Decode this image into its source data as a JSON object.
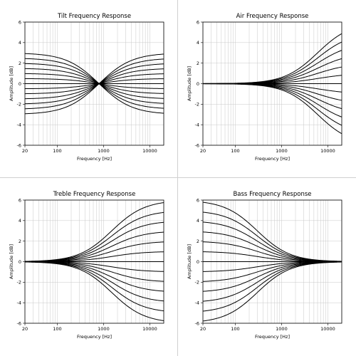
{
  "chart_data": [
    {
      "type": "line",
      "title": "Tilt Frequency Response",
      "xlabel": "Frequency [Hz]",
      "ylabel": "Amplitude [dB]",
      "xscale": "log",
      "xlim": [
        20,
        20000
      ],
      "ylim": [
        -6,
        6
      ],
      "xticks": [
        "20",
        "100",
        "1000",
        "10000"
      ],
      "yticks": [
        "-6",
        "-4",
        "-2",
        "0",
        "2",
        "4",
        "6"
      ],
      "grid": true,
      "kind": "tilt",
      "pivot_hz": 800,
      "gains_db": [
        -3,
        -2.5,
        -2,
        -1.5,
        -1,
        -0.5,
        0,
        0.5,
        1,
        1.5,
        2,
        2.5,
        3
      ]
    },
    {
      "type": "line",
      "title": "Air Frequency Response",
      "xlabel": "Frequency [Hz]",
      "ylabel": "Amplitude [dB]",
      "xscale": "log",
      "xlim": [
        20,
        20000
      ],
      "ylim": [
        -6,
        6
      ],
      "xticks": [
        "20",
        "100",
        "1000",
        "10000"
      ],
      "yticks": [
        "-6",
        "-4",
        "-2",
        "0",
        "2",
        "4",
        "6"
      ],
      "grid": true,
      "kind": "highshelf",
      "corner_hz": 6000,
      "gains_db": [
        -6,
        -5,
        -4,
        -3,
        -2,
        -1,
        0,
        1,
        2,
        3,
        4,
        5,
        6
      ]
    },
    {
      "type": "line",
      "title": "Treble Frequency Response",
      "xlabel": "Frequency [Hz]",
      "ylabel": "Amplitude [dB]",
      "xscale": "log",
      "xlim": [
        20,
        20000
      ],
      "ylim": [
        -6,
        6
      ],
      "xticks": [
        "20",
        "100",
        "1000",
        "10000"
      ],
      "yticks": [
        "-6",
        "-4",
        "-2",
        "0",
        "2",
        "4",
        "6"
      ],
      "grid": true,
      "kind": "highshelf",
      "corner_hz": 1500,
      "gains_db": [
        -6,
        -5,
        -4,
        -3,
        -2,
        -1,
        0,
        1,
        2,
        3,
        4,
        5,
        6
      ]
    },
    {
      "type": "line",
      "title": "Bass Frequency Response",
      "xlabel": "Frequency [Hz]",
      "ylabel": "Amplitude [dB]",
      "xscale": "log",
      "xlim": [
        20,
        20000
      ],
      "ylim": [
        -6,
        6
      ],
      "xticks": [
        "20",
        "100",
        "1000",
        "10000"
      ],
      "yticks": [
        "-6",
        "-4",
        "-2",
        "0",
        "2",
        "4",
        "6"
      ],
      "grid": true,
      "kind": "lowshelf",
      "corner_hz": 300,
      "gains_db": [
        -6,
        -5,
        -4,
        -3,
        -2,
        -1,
        0,
        1,
        2,
        3,
        4,
        5,
        6
      ]
    }
  ]
}
